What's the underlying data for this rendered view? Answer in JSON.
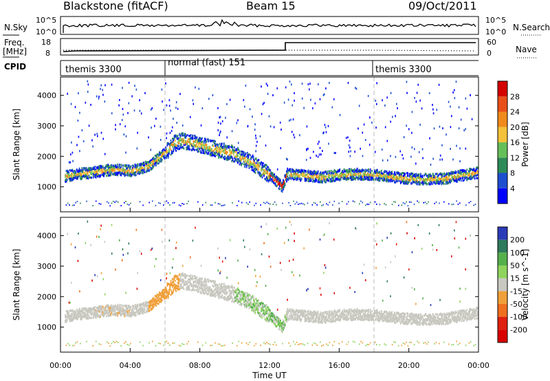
{
  "header": {
    "station": "Blackstone (fitACF)",
    "beam": "Beam 15",
    "date": "09/Oct/2011"
  },
  "summary_panels": {
    "nsky_label": "N.Sky",
    "nsky_ticks": [
      "10^5",
      "10^0"
    ],
    "nsearch_label": "N.Search",
    "freq_label": "Freq.",
    "freq_unit": "[MHz]",
    "freq_ticks": [
      "18",
      "8"
    ],
    "nave_label": "Nave",
    "nave_ticks": [
      "60",
      "0"
    ],
    "cpid_label": "CPID",
    "cpid_segments": [
      {
        "label": "themis 3300",
        "start_hour": 0
      },
      {
        "label": "normal (fast) 151",
        "start_hour": 6
      },
      {
        "label": "themis 3300",
        "start_hour": 18
      }
    ]
  },
  "colors": {
    "power_scale": [
      "#0000ff",
      "#1f4fd0",
      "#2e8b57",
      "#66c05a",
      "#f4c23a",
      "#f08a1c",
      "#e8501a",
      "#d40000"
    ],
    "velocity_scale": [
      "#2b3bb8",
      "#2f7a5c",
      "#55b04c",
      "#8fd45e",
      "#c8c8c0",
      "#f0a03a",
      "#f07020",
      "#e02010",
      "#d80000"
    ],
    "ground_scatter": "#c8c8c0"
  },
  "chart_data": [
    {
      "type": "heatmap",
      "title": "",
      "xlabel": "",
      "ylabel": "Slant Range [km]",
      "x_range_hours": [
        0,
        24
      ],
      "ylim": [
        180,
        4600
      ],
      "yticks": [
        1000,
        2000,
        3000,
        4000
      ],
      "colorbar_label": "Power [dB]",
      "colorbar_ticks": [
        "4",
        "8",
        "12",
        "16",
        "20",
        "24",
        "28"
      ],
      "scatter_band_center_km": [
        {
          "hour": 0,
          "km": 1350
        },
        {
          "hour": 1,
          "km": 1450
        },
        {
          "hour": 2,
          "km": 1520
        },
        {
          "hour": 3,
          "km": 1600
        },
        {
          "hour": 4,
          "km": 1550
        },
        {
          "hour": 5,
          "km": 1700
        },
        {
          "hour": 6,
          "km": 2150
        },
        {
          "hour": 6.5,
          "km": 2450
        },
        {
          "hour": 7,
          "km": 2550
        },
        {
          "hour": 8,
          "km": 2400
        },
        {
          "hour": 9,
          "km": 2250
        },
        {
          "hour": 10,
          "km": 2100
        },
        {
          "hour": 11,
          "km": 1800
        },
        {
          "hour": 12,
          "km": 1400
        },
        {
          "hour": 12.7,
          "km": 1050
        },
        {
          "hour": 13,
          "km": 1450
        },
        {
          "hour": 14,
          "km": 1400
        },
        {
          "hour": 15,
          "km": 1350
        },
        {
          "hour": 16,
          "km": 1420
        },
        {
          "hour": 17,
          "km": 1450
        },
        {
          "hour": 18,
          "km": 1420
        },
        {
          "hour": 19,
          "km": 1350
        },
        {
          "hour": 20,
          "km": 1300
        },
        {
          "hour": 21,
          "km": 1280
        },
        {
          "hour": 22,
          "km": 1300
        },
        {
          "hour": 23,
          "km": 1400
        },
        {
          "hour": 24,
          "km": 1500
        }
      ],
      "near_range_band_km": 480
    },
    {
      "type": "heatmap",
      "title": "",
      "xlabel": "Time UT",
      "ylabel": "Slant Range [km]",
      "x_range_hours": [
        0,
        24
      ],
      "xticks": [
        "00:00",
        "04:00",
        "08:00",
        "12:00",
        "16:00",
        "20:00",
        "00:00"
      ],
      "ylim": [
        180,
        4600
      ],
      "yticks": [
        1000,
        2000,
        3000,
        4000
      ],
      "colorbar_label": "Velocity [m s^-1]",
      "colorbar_ticks": [
        "200",
        "100",
        "50",
        "15",
        "-15",
        "-50",
        "-100",
        "-200"
      ]
    }
  ]
}
